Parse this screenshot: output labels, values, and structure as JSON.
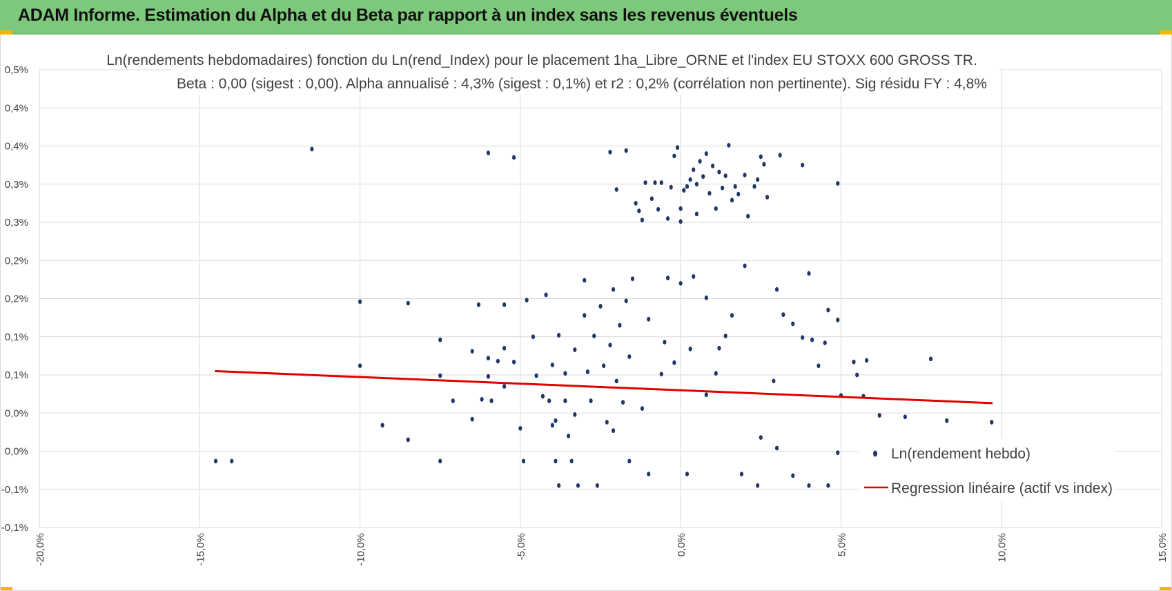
{
  "header": {
    "title": "ADAM Informe. Estimation du Alpha et du Beta par rapport à un index sans les revenus éventuels",
    "background": "#7dc87b",
    "corner_color": "#f2b600"
  },
  "chart_data": {
    "type": "scatter",
    "title_line1": "Ln(rendements hebdomadaires) fonction du Ln(rend_Index) pour le placement 1ha_Libre_ORNE et l'index EU STOXX 600 GROSS TR.",
    "title_line2": "Beta : 0,00 (sigest : 0,00).  Alpha annualisé : 4,3% (sigest : 0,1%) et r2 : 0,2% (corrélation non pertinente). Sig résidu FY : 4,8%",
    "xlim": [
      -20,
      15
    ],
    "ylim": [
      -0.1,
      0.5
    ],
    "x_ticks": [
      -20,
      -15,
      -10,
      -5,
      0,
      5,
      10,
      15
    ],
    "x_tick_labels": [
      "-20,0%",
      "-15,0%",
      "-10,0%",
      "-5,0%",
      "0,0%",
      "5,0%",
      "10,0%",
      "15,0%"
    ],
    "y_ticks": [
      0.5,
      0.45,
      0.4,
      0.35,
      0.3,
      0.25,
      0.2,
      0.15,
      0.1,
      0.05,
      0.0,
      -0.05,
      -0.1
    ],
    "y_tick_labels": [
      "0,5%",
      "0,4%",
      "0,4%",
      "0,3%",
      "0,3%",
      "0,2%",
      "0,2%",
      "0,1%",
      "0,1%",
      "0,0%",
      "0,0%",
      "-0,1%",
      "-0,1%"
    ],
    "grid": true,
    "series": [
      {
        "name": "Ln(rendement hebdo)",
        "kind": "scatter",
        "color": "#1f3864",
        "points": [
          [
            -14.5,
            -0.013
          ],
          [
            -14.0,
            -0.013
          ],
          [
            -11.5,
            0.396
          ],
          [
            -10.0,
            0.196
          ],
          [
            -10.0,
            0.112
          ],
          [
            -9.3,
            0.034
          ],
          [
            -8.5,
            0.194
          ],
          [
            -8.5,
            0.015
          ],
          [
            -7.5,
            0.146
          ],
          [
            -7.5,
            0.099
          ],
          [
            -7.5,
            -0.013
          ],
          [
            -7.1,
            0.066
          ],
          [
            -6.5,
            0.131
          ],
          [
            -6.5,
            0.042
          ],
          [
            -6.3,
            0.192
          ],
          [
            -6.2,
            0.068
          ],
          [
            -6.0,
            0.391
          ],
          [
            -6.0,
            0.122
          ],
          [
            -6.0,
            0.098
          ],
          [
            -5.9,
            0.066
          ],
          [
            -5.7,
            0.118
          ],
          [
            -5.5,
            0.192
          ],
          [
            -5.5,
            0.135
          ],
          [
            -5.5,
            0.085
          ],
          [
            -5.2,
            0.385
          ],
          [
            -5.2,
            0.117
          ],
          [
            -5.0,
            0.03
          ],
          [
            -4.9,
            -0.013
          ],
          [
            -4.8,
            0.198
          ],
          [
            -4.6,
            0.15
          ],
          [
            -4.5,
            0.099
          ],
          [
            -4.3,
            0.072
          ],
          [
            -4.2,
            0.205
          ],
          [
            -4.1,
            0.066
          ],
          [
            -4.0,
            0.113
          ],
          [
            -4.0,
            0.034
          ],
          [
            -3.9,
            -0.013
          ],
          [
            -3.8,
            0.152
          ],
          [
            -3.8,
            -0.045
          ],
          [
            -3.6,
            0.102
          ],
          [
            -3.6,
            0.066
          ],
          [
            -3.5,
            0.02
          ],
          [
            -3.4,
            -0.013
          ],
          [
            -3.3,
            0.133
          ],
          [
            -3.3,
            0.048
          ],
          [
            -3.2,
            -0.045
          ],
          [
            -3.0,
            0.224
          ],
          [
            -3.0,
            0.178
          ],
          [
            -2.9,
            0.104
          ],
          [
            -2.8,
            0.066
          ],
          [
            -2.7,
            0.151
          ],
          [
            -2.6,
            -0.045
          ],
          [
            -2.5,
            0.19
          ],
          [
            -2.4,
            0.112
          ],
          [
            -2.3,
            0.038
          ],
          [
            -2.2,
            0.392
          ],
          [
            -2.2,
            0.139
          ],
          [
            -2.1,
            0.212
          ],
          [
            -2.0,
            0.343
          ],
          [
            -2.0,
            0.092
          ],
          [
            -1.9,
            0.165
          ],
          [
            -1.8,
            0.064
          ],
          [
            -1.7,
            0.394
          ],
          [
            -1.7,
            0.197
          ],
          [
            -1.6,
            0.124
          ],
          [
            -1.5,
            0.226
          ],
          [
            -1.4,
            0.325
          ],
          [
            -1.3,
            0.315
          ],
          [
            -1.2,
            0.303
          ],
          [
            -1.2,
            0.056
          ],
          [
            -1.1,
            0.352
          ],
          [
            -1.0,
            0.173
          ],
          [
            -0.9,
            0.331
          ],
          [
            -0.8,
            0.352
          ],
          [
            -0.7,
            0.317
          ],
          [
            -0.6,
            0.352
          ],
          [
            -0.6,
            0.101
          ],
          [
            -0.5,
            0.143
          ],
          [
            -0.4,
            0.305
          ],
          [
            -0.3,
            0.346
          ],
          [
            -0.2,
            0.387
          ],
          [
            -0.1,
            0.398
          ],
          [
            0.0,
            0.301
          ],
          [
            0.0,
            0.318
          ],
          [
            0.1,
            0.342
          ],
          [
            0.2,
            0.347
          ],
          [
            0.3,
            0.356
          ],
          [
            0.4,
            0.369
          ],
          [
            0.5,
            0.311
          ],
          [
            0.5,
            0.35
          ],
          [
            0.6,
            0.38
          ],
          [
            0.7,
            0.36
          ],
          [
            0.8,
            0.39
          ],
          [
            0.9,
            0.338
          ],
          [
            1.0,
            0.374
          ],
          [
            1.1,
            0.318
          ],
          [
            1.2,
            0.366
          ],
          [
            1.3,
            0.345
          ],
          [
            1.4,
            0.361
          ],
          [
            1.5,
            0.401
          ],
          [
            1.6,
            0.329
          ],
          [
            1.7,
            0.347
          ],
          [
            1.8,
            0.337
          ],
          [
            2.0,
            0.362
          ],
          [
            2.1,
            0.308
          ],
          [
            2.3,
            0.347
          ],
          [
            2.4,
            0.356
          ],
          [
            2.5,
            0.386
          ],
          [
            2.6,
            0.376
          ],
          [
            2.7,
            0.333
          ],
          [
            3.1,
            0.388
          ],
          [
            3.8,
            0.375
          ],
          [
            4.9,
            0.351
          ],
          [
            4.6,
            0.185
          ],
          [
            4.9,
            0.172
          ],
          [
            4.5,
            0.142
          ],
          [
            5.0,
            0.073
          ],
          [
            5.4,
            0.117
          ],
          [
            5.5,
            0.1
          ],
          [
            5.7,
            0.072
          ],
          [
            5.8,
            0.119
          ],
          [
            6.2,
            0.047
          ],
          [
            7.0,
            0.045
          ],
          [
            7.8,
            0.121
          ],
          [
            8.3,
            0.04
          ],
          [
            9.7,
            0.038
          ],
          [
            4.9,
            -0.002
          ],
          [
            4.0,
            0.233
          ],
          [
            3.8,
            0.149
          ],
          [
            4.1,
            0.146
          ],
          [
            3.0,
            0.212
          ],
          [
            3.2,
            0.179
          ],
          [
            3.5,
            0.167
          ],
          [
            3.0,
            0.004
          ],
          [
            3.5,
            -0.032
          ],
          [
            4.0,
            -0.045
          ],
          [
            4.6,
            -0.045
          ],
          [
            2.5,
            0.018
          ],
          [
            2.0,
            0.243
          ],
          [
            1.6,
            0.178
          ],
          [
            1.2,
            0.135
          ],
          [
            0.8,
            0.201
          ],
          [
            0.4,
            0.229
          ],
          [
            0.0,
            0.22
          ],
          [
            -0.4,
            0.227
          ],
          [
            0.8,
            0.074
          ],
          [
            1.4,
            0.151
          ],
          [
            -0.2,
            0.116
          ],
          [
            0.3,
            0.134
          ],
          [
            1.1,
            0.102
          ],
          [
            -1.0,
            -0.03
          ],
          [
            2.4,
            -0.045
          ],
          [
            -3.9,
            0.04
          ],
          [
            -2.1,
            0.027
          ],
          [
            2.9,
            0.092
          ],
          [
            4.3,
            0.112
          ],
          [
            -1.6,
            -0.013
          ],
          [
            1.9,
            -0.03
          ],
          [
            0.2,
            -0.03
          ]
        ]
      },
      {
        "name": "Regression linéaire (actif vs index)",
        "kind": "line",
        "color": "#e00000",
        "points": [
          [
            -14.5,
            0.105
          ],
          [
            9.7,
            0.063
          ]
        ]
      }
    ],
    "legend_position": "right"
  }
}
